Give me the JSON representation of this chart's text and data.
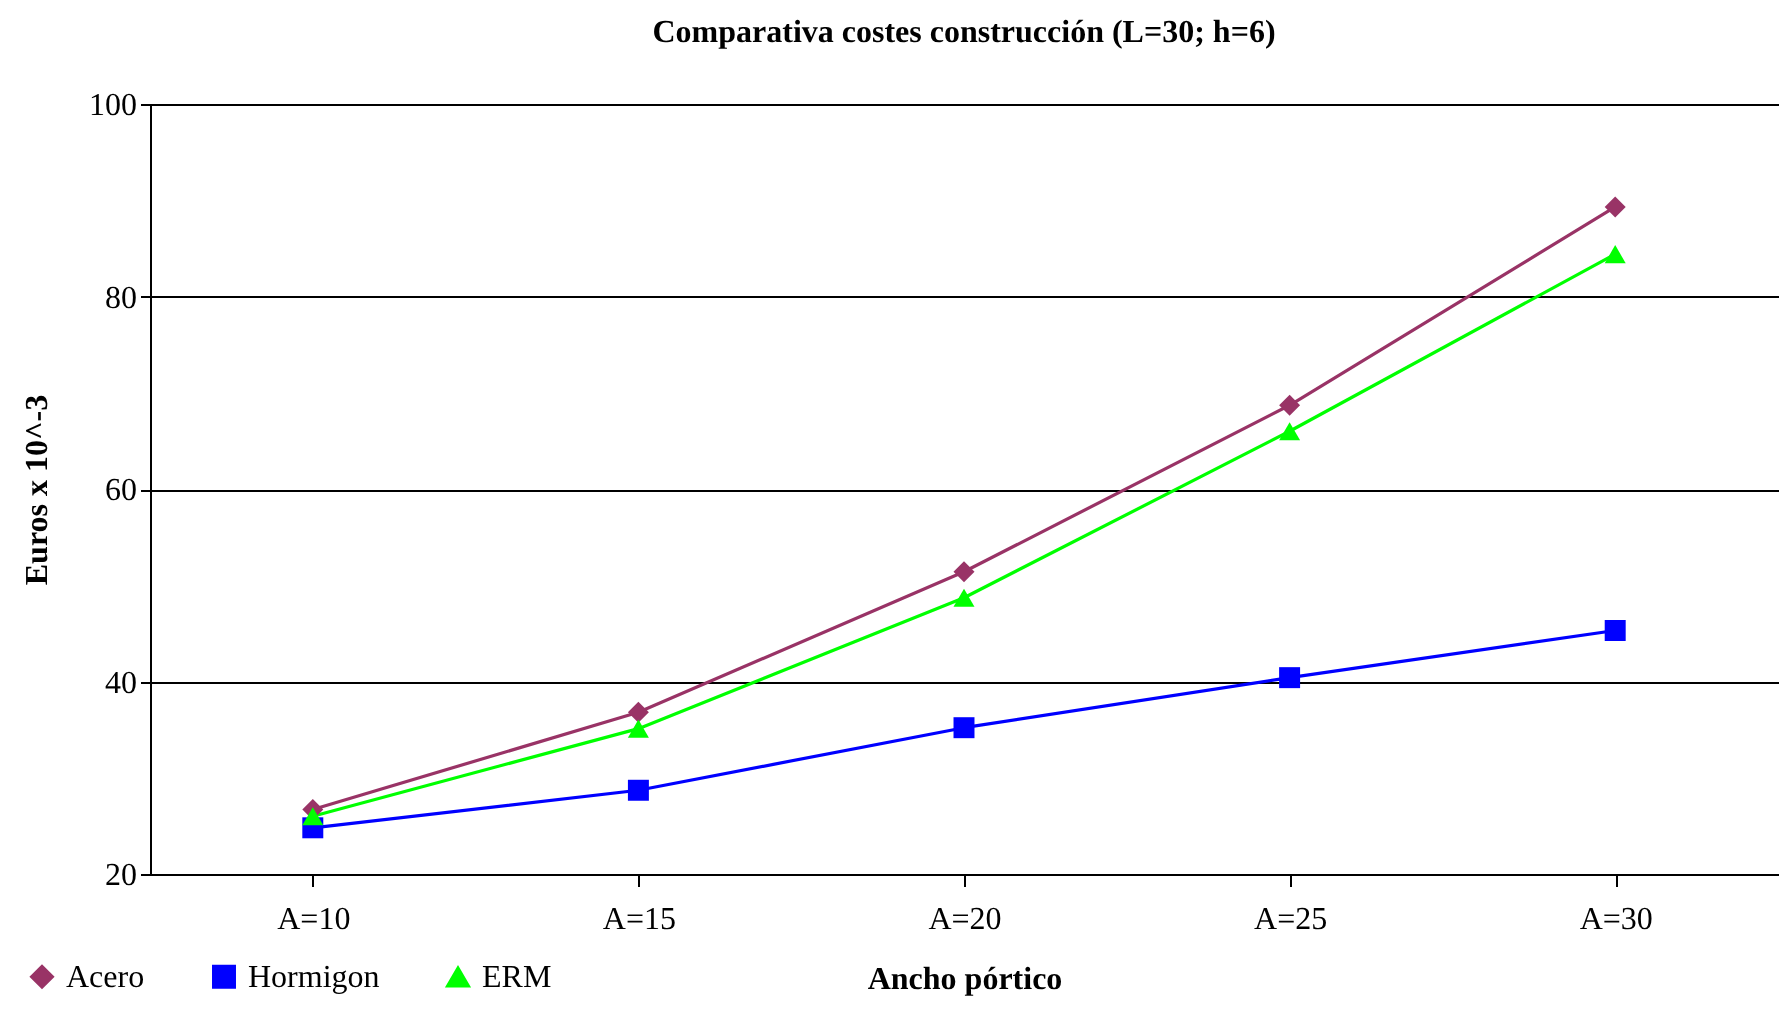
{
  "chart_data": {
    "type": "line",
    "title": "Comparativa costes construcción  (L=30; h=6)",
    "xlabel": "Ancho pórtico",
    "ylabel": "Euros x 10^-3",
    "categories": [
      "A=10",
      "A=15",
      "A=20",
      "A=25",
      "A=30"
    ],
    "series": [
      {
        "name": "Acero",
        "color": "#993366",
        "marker": "diamond",
        "values": [
          26.7,
          36.8,
          51.4,
          68.7,
          89.3
        ]
      },
      {
        "name": "Hormigon",
        "color": "#0000ff",
        "marker": "square",
        "values": [
          24.8,
          28.7,
          35.2,
          40.4,
          45.3
        ]
      },
      {
        "name": "ERM",
        "color": "#00ff00",
        "marker": "triangle",
        "values": [
          26.0,
          35.1,
          48.7,
          66.0,
          84.4
        ]
      }
    ],
    "ylim": [
      20,
      100
    ],
    "yticks": [
      20,
      40,
      60,
      80,
      100
    ],
    "grid": "y",
    "legend": "bottom left",
    "line_style": "solid"
  }
}
